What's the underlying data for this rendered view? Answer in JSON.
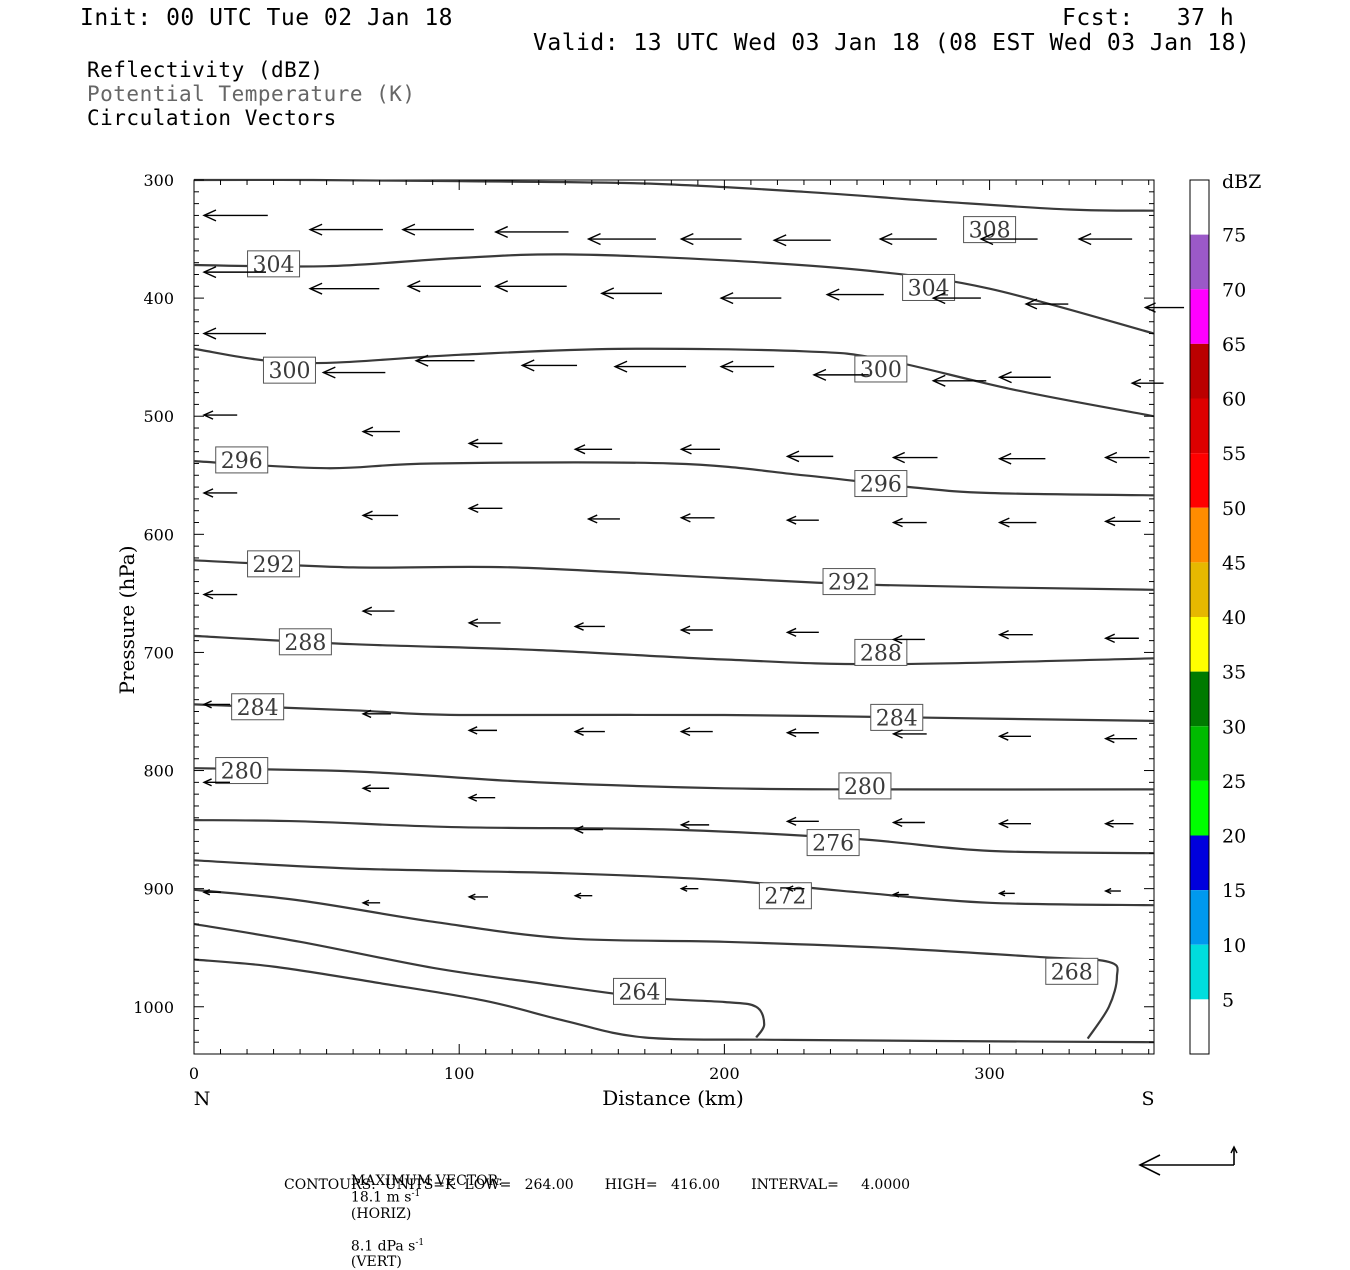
{
  "header": {
    "init": "Init: 00 UTC Tue 02 Jan 18",
    "fcst": "Fcst:   37 h",
    "valid": "Valid: 13 UTC Wed 03 Jan 18 (08 EST Wed 03 Jan 18)"
  },
  "legend": {
    "line1": "Reflectivity (dBZ)",
    "line2": "Potential Temperature (K)",
    "line3": "Circulation Vectors"
  },
  "colors": {
    "contour": "#3a3a3a",
    "potential_temp_text": "#666666"
  },
  "chart_data": {
    "type": "contour",
    "xlabel": "Distance (km)",
    "ylabel": "Pressure (hPa)",
    "xlim": [
      0,
      362
    ],
    "ylim": [
      300,
      1040
    ],
    "y_log_scale": false,
    "x_ticks": [
      "0",
      "100",
      "200",
      "300"
    ],
    "y_ticks": [
      "300",
      "400",
      "500",
      "600",
      "700",
      "800",
      "900",
      "1000"
    ],
    "x_end_labels": {
      "left": "N",
      "right": "S"
    },
    "contours": [
      {
        "level": 308,
        "label": "308",
        "pts": [
          [
            0,
            300
          ],
          [
            45,
            300
          ],
          [
            100,
            301
          ],
          [
            170,
            303
          ],
          [
            230,
            310
          ],
          [
            280,
            318
          ],
          [
            330,
            325
          ],
          [
            362,
            326
          ]
        ],
        "labels": [
          [
            300,
            342
          ]
        ]
      },
      {
        "level": 304,
        "label": "304",
        "pts": [
          [
            0,
            372
          ],
          [
            50,
            373
          ],
          [
            100,
            366
          ],
          [
            140,
            363
          ],
          [
            200,
            368
          ],
          [
            255,
            377
          ],
          [
            300,
            392
          ],
          [
            362,
            430
          ]
        ],
        "labels": [
          [
            30,
            371
          ],
          [
            277,
            391
          ]
        ]
      },
      {
        "level": 300,
        "label": "300",
        "pts": [
          [
            0,
            443
          ],
          [
            40,
            455
          ],
          [
            100,
            448
          ],
          [
            160,
            443
          ],
          [
            230,
            445
          ],
          [
            260,
            452
          ],
          [
            310,
            478
          ],
          [
            362,
            500
          ]
        ],
        "labels": [
          [
            36,
            461
          ],
          [
            259,
            460
          ]
        ]
      },
      {
        "level": 296,
        "label": "296",
        "pts": [
          [
            0,
            538
          ],
          [
            50,
            544
          ],
          [
            90,
            540
          ],
          [
            180,
            540
          ],
          [
            230,
            550
          ],
          [
            270,
            560
          ],
          [
            300,
            565
          ],
          [
            362,
            567
          ]
        ],
        "labels": [
          [
            18,
            537
          ],
          [
            259,
            557
          ]
        ]
      },
      {
        "level": 292,
        "label": "292",
        "pts": [
          [
            0,
            622
          ],
          [
            60,
            628
          ],
          [
            120,
            628
          ],
          [
            200,
            637
          ],
          [
            260,
            643
          ],
          [
            362,
            647
          ]
        ],
        "labels": [
          [
            30,
            625
          ],
          [
            247,
            640
          ]
        ]
      },
      {
        "level": 288,
        "label": "288",
        "pts": [
          [
            0,
            686
          ],
          [
            60,
            693
          ],
          [
            130,
            698
          ],
          [
            200,
            706
          ],
          [
            260,
            710
          ],
          [
            362,
            705
          ]
        ],
        "labels": [
          [
            42,
            691
          ],
          [
            259,
            700
          ]
        ]
      },
      {
        "level": 284,
        "label": "284",
        "pts": [
          [
            0,
            744
          ],
          [
            60,
            749
          ],
          [
            100,
            753
          ],
          [
            200,
            753
          ],
          [
            300,
            756
          ],
          [
            362,
            758
          ]
        ],
        "labels": [
          [
            24,
            746
          ],
          [
            265,
            755
          ]
        ]
      },
      {
        "level": 280,
        "label": "280",
        "pts": [
          [
            0,
            798
          ],
          [
            50,
            800
          ],
          [
            80,
            803
          ],
          [
            130,
            810
          ],
          [
            200,
            815
          ],
          [
            260,
            816
          ],
          [
            362,
            816
          ]
        ],
        "labels": [
          [
            18,
            800
          ],
          [
            253,
            813
          ]
        ]
      },
      {
        "level": 276,
        "label": "276",
        "pts": [
          [
            0,
            842
          ],
          [
            40,
            843
          ],
          [
            100,
            848
          ],
          [
            180,
            850
          ],
          [
            250,
            858
          ],
          [
            300,
            868
          ],
          [
            362,
            870
          ]
        ],
        "labels": [
          [
            241,
            861
          ]
        ]
      },
      {
        "level": 272,
        "label": "272",
        "pts": [
          [
            0,
            876
          ],
          [
            60,
            883
          ],
          [
            140,
            887
          ],
          [
            200,
            893
          ],
          [
            250,
            903
          ],
          [
            300,
            912
          ],
          [
            362,
            914
          ]
        ],
        "labels": [
          [
            223,
            906
          ]
        ]
      },
      {
        "level": 268,
        "label": "268",
        "pts": [
          [
            0,
            901
          ],
          [
            40,
            910
          ],
          [
            90,
            928
          ],
          [
            140,
            942
          ],
          [
            200,
            945
          ],
          [
            260,
            950
          ],
          [
            320,
            958
          ],
          [
            345,
            962
          ],
          [
            348,
            975
          ],
          [
            345,
            1000
          ],
          [
            337,
            1027
          ]
        ],
        "labels": [
          [
            331,
            970
          ]
        ]
      },
      {
        "level": 264,
        "label": "264",
        "pts": [
          [
            0,
            930
          ],
          [
            40,
            945
          ],
          [
            90,
            967
          ],
          [
            130,
            980
          ],
          [
            170,
            992
          ],
          [
            200,
            996
          ],
          [
            212,
            1000
          ],
          [
            215,
            1015
          ],
          [
            212,
            1026
          ]
        ],
        "labels": [
          [
            168,
            987
          ]
        ]
      },
      {
        "level": "bottom",
        "label": "",
        "pts": [
          [
            0,
            960
          ],
          [
            30,
            966
          ],
          [
            70,
            980
          ],
          [
            110,
            995
          ],
          [
            140,
            1012
          ],
          [
            170,
            1026
          ],
          [
            220,
            1028
          ],
          [
            280,
            1029
          ],
          [
            362,
            1030
          ]
        ],
        "labels": []
      }
    ],
    "vectors": [
      {
        "p": 330,
        "row": [
          [
            0,
            -31
          ],
          [
            40,
            -36
          ],
          [
            75,
            -35
          ],
          [
            110,
            -36
          ],
          [
            145,
            -33
          ],
          [
            180,
            -29
          ],
          [
            215,
            -27
          ],
          [
            255,
            -27
          ],
          [
            293,
            -27
          ],
          [
            330,
            -25
          ]
        ],
        "y": [
          330,
          342,
          342,
          344,
          350,
          350,
          351,
          350,
          350,
          350
        ]
      },
      {
        "p": 380,
        "row": [
          [
            0,
            -30
          ],
          [
            40,
            -34
          ],
          [
            77,
            -36
          ],
          [
            110,
            -35
          ],
          [
            150,
            -29
          ],
          [
            195,
            -29
          ],
          [
            235,
            -27
          ],
          [
            275,
            -22
          ],
          [
            310,
            -19
          ],
          [
            355,
            -17
          ]
        ],
        "y": [
          378,
          392,
          390,
          390,
          396,
          400,
          397,
          400,
          405,
          408
        ]
      },
      {
        "p": 440,
        "row": [
          [
            0,
            -30
          ],
          [
            45,
            -30
          ],
          [
            80,
            -28
          ],
          [
            120,
            -26
          ],
          [
            155,
            -35
          ],
          [
            195,
            -25
          ],
          [
            230,
            -26
          ],
          [
            275,
            -25
          ],
          [
            300,
            -24
          ],
          [
            350,
            -13
          ]
        ],
        "y": [
          430,
          463,
          453,
          457,
          458,
          458,
          465,
          470,
          467,
          472
        ]
      },
      {
        "p": 500,
        "row": [
          [
            0,
            -14
          ],
          [
            60,
            -16
          ],
          [
            100,
            -14
          ],
          [
            140,
            -16
          ],
          [
            180,
            -17
          ],
          [
            220,
            -21
          ],
          [
            260,
            -20
          ],
          [
            300,
            -21
          ],
          [
            340,
            -20
          ]
        ],
        "y": [
          499,
          513,
          523,
          528,
          528,
          534,
          535,
          536,
          535
        ]
      },
      {
        "p": 560,
        "row": [
          [
            0,
            -14
          ],
          [
            60,
            -15
          ],
          [
            100,
            -14
          ],
          [
            145,
            -13
          ],
          [
            180,
            -14
          ],
          [
            220,
            -13
          ],
          [
            260,
            -14
          ],
          [
            300,
            -16
          ],
          [
            340,
            -15
          ]
        ],
        "y": [
          565,
          584,
          578,
          587,
          586,
          588,
          590,
          590,
          589
        ]
      },
      {
        "p": 640,
        "row": [
          [
            0,
            -14
          ],
          [
            60,
            -13
          ],
          [
            100,
            -13
          ],
          [
            140,
            -12
          ],
          [
            180,
            -13
          ],
          [
            220,
            -13
          ],
          [
            260,
            -13
          ],
          [
            300,
            -14
          ],
          [
            340,
            -14
          ]
        ],
        "y": [
          651,
          665,
          675,
          678,
          681,
          683,
          689,
          685,
          688
        ]
      },
      {
        "p": 750,
        "row": [
          [
            0,
            -10
          ],
          [
            60,
            -11
          ],
          [
            100,
            -11
          ],
          [
            140,
            -12
          ],
          [
            180,
            -13
          ],
          [
            220,
            -13
          ],
          [
            260,
            -14
          ],
          [
            300,
            -13
          ],
          [
            340,
            -13
          ]
        ],
        "y": [
          744,
          752,
          766,
          767,
          767,
          768,
          769,
          771,
          773
        ]
      },
      {
        "p": 840,
        "row": [
          [
            0,
            -10
          ],
          [
            60,
            -10
          ],
          [
            100,
            -10
          ],
          [
            140,
            -11
          ],
          [
            180,
            -11
          ],
          [
            220,
            -13
          ],
          [
            260,
            -13
          ],
          [
            300,
            -13
          ],
          [
            340,
            -11
          ]
        ],
        "y": [
          810,
          815,
          823,
          850,
          846,
          843,
          844,
          845,
          845
        ]
      },
      {
        "p": 900,
        "row": [
          [
            0,
            -5
          ],
          [
            60,
            -5
          ],
          [
            100,
            -6
          ],
          [
            140,
            -5
          ],
          [
            180,
            -5
          ],
          [
            220,
            -5
          ],
          [
            260,
            -4
          ],
          [
            300,
            -4
          ],
          [
            340,
            -4
          ]
        ],
        "y": [
          903,
          912,
          907,
          906,
          900,
          900,
          905,
          904,
          902
        ]
      }
    ],
    "colorbar": {
      "unit": "dBZ",
      "labels": [
        "75",
        "70",
        "65",
        "60",
        "55",
        "50",
        "45",
        "40",
        "35",
        "30",
        "25",
        "20",
        "15",
        "10",
        "5"
      ],
      "colors": [
        "#ffffff",
        "#9b59c8",
        "#ff00ff",
        "#bb0000",
        "#dd0000",
        "#ff0000",
        "#ff8c00",
        "#e6b800",
        "#ffff00",
        "#007a00",
        "#00bb00",
        "#00ff00",
        "#0000dd",
        "#0099ee",
        "#00dddd",
        "#ffffff"
      ]
    }
  },
  "footer": {
    "max_vector_label": "MAXIMUM VECTOR:",
    "max_horiz_value": "18.1 m s",
    "max_horiz_unit": "(HORIZ)",
    "max_vert_value": "8.1 dPa s",
    "max_vert_unit": "(VERT)",
    "superscript": "-1",
    "contours_line": "CONTOURS:  UNITS=K  LOW=   264.00       HIGH=   416.00       INTERVAL=     4.0000"
  }
}
